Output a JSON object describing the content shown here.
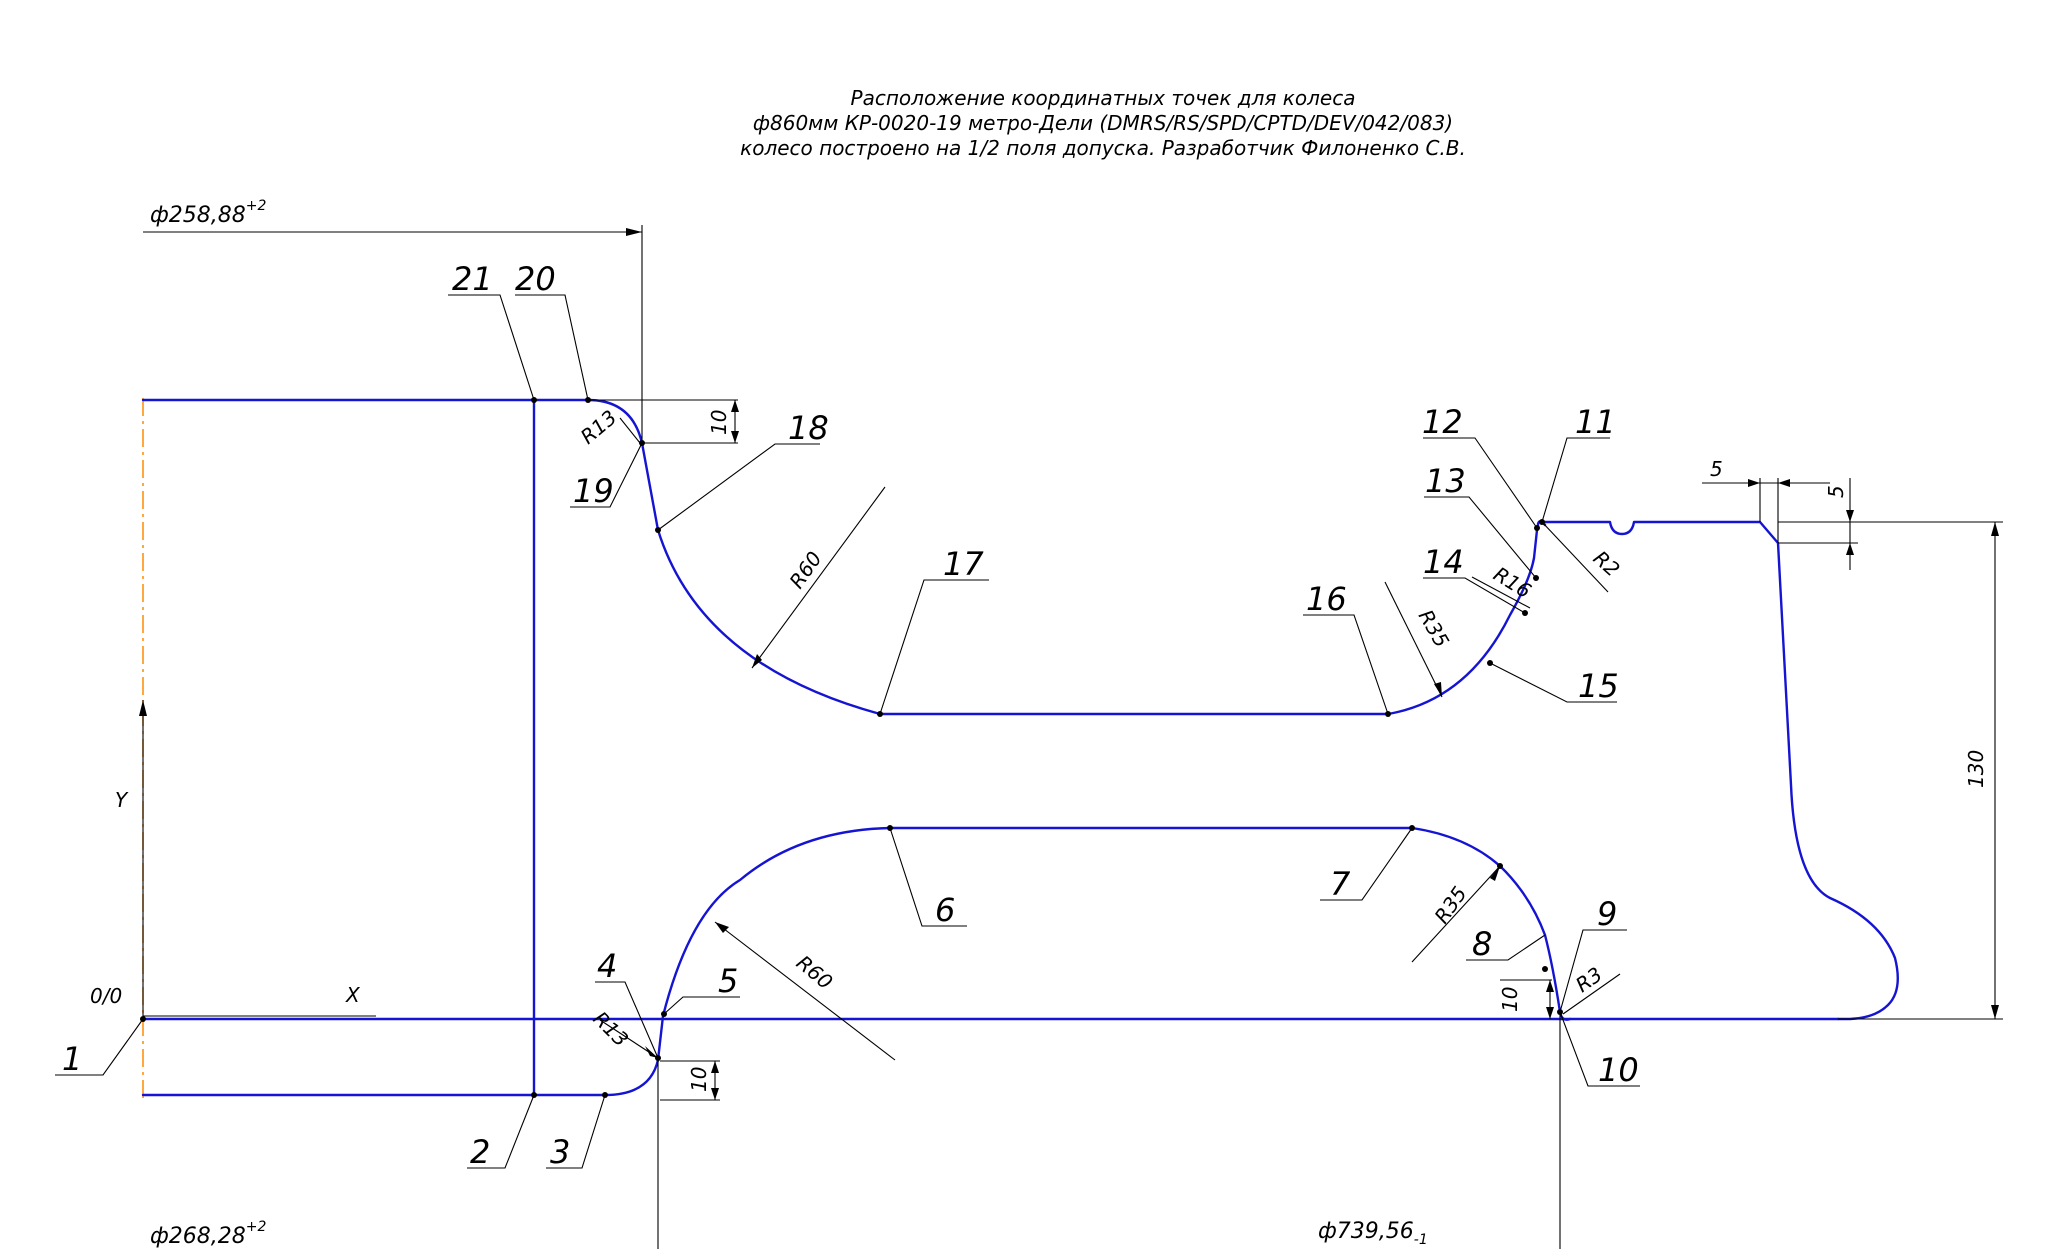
{
  "title": {
    "lines": [
      "Расположение координатных точек для колеса",
      "ф860мм КР-0020-19 метро-Дели (DMRS/RS/SPD/CPTD/DEV/042/083)",
      "колесо построено на 1/2 поля допуска. Разработчик Филоненко С.В."
    ]
  },
  "axes": {
    "x_label": "X",
    "y_label": "Y",
    "origin_label": "0/0"
  },
  "diameters": {
    "top": {
      "text": "ф258,88",
      "tol": "+2"
    },
    "bottom_left": {
      "text": "ф268,28",
      "tol": "+2"
    },
    "bottom_right": {
      "text": "ф739,56",
      "tol": "-1"
    }
  },
  "radii": {
    "r13_top": "R13",
    "r13_bottom": "R13",
    "r60_top": "R60",
    "r60_bottom": "R60",
    "r35_top": "R35",
    "r35_bottom": "R35",
    "r16": "R16",
    "r2": "R2",
    "r3": "R3"
  },
  "dimensions": {
    "d10_top": "10",
    "d10_bottom": "10",
    "d10_right": "10",
    "d5_h": "5",
    "d5_v": "5",
    "d130": "130"
  },
  "points": [
    "1",
    "2",
    "3",
    "4",
    "5",
    "6",
    "7",
    "8",
    "9",
    "10",
    "11",
    "12",
    "13",
    "14",
    "15",
    "16",
    "17",
    "18",
    "19",
    "20",
    "21"
  ]
}
